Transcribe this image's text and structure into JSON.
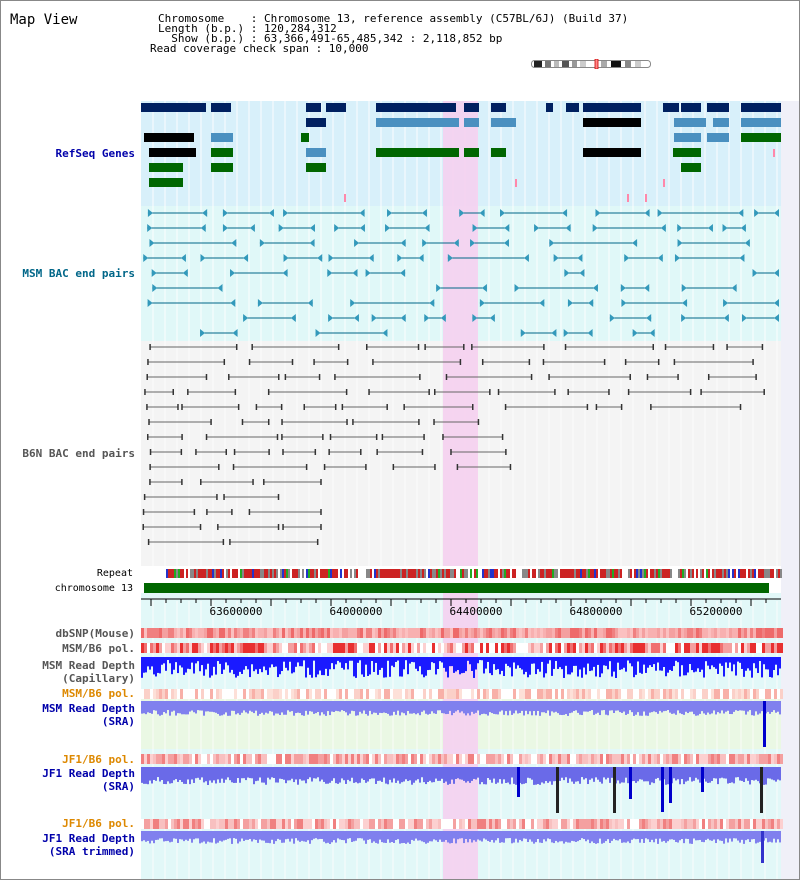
{
  "title": "Map View",
  "header": {
    "line1": "Chromosome    : Chromosome 13, reference assembly (C57BL/6J) (Build 37)",
    "line2": "Length (b.p.) : 120,284,312",
    "line3": "  Show (b.p.) : 63,366,491-65,485,342 : 2,118,852 bp",
    "line4": "Read coverage check span : 10,000"
  },
  "tracks": {
    "refseq": "RefSeq Genes",
    "msm_bac": "MSM BAC end pairs",
    "b6n_bac": "B6N BAC end pairs",
    "repeat": "Repeat",
    "chromosome": "chromosome 13",
    "dbsnp": "dbSNP(Mouse)",
    "msm_b6_pol_a": "MSM/B6 pol.",
    "msm_depth_cap_1": "MSM Read Depth",
    "msm_depth_cap_2": "(Capillary)",
    "msm_b6_pol_b": "MSM/B6 pol.",
    "msm_depth_sra_1": "MSM Read Depth",
    "msm_depth_sra_2": "(SRA)",
    "jf1_b6_pol_a": "JF1/B6 pol.",
    "jf1_depth_sra_1": "JF1 Read Depth",
    "jf1_depth_sra_2": "(SRA)",
    "jf1_b6_pol_b": "JF1/B6 pol.",
    "jf1_depth_trim_1": "JF1 Read Depth",
    "jf1_depth_trim_2": "(SRA trimmed)"
  },
  "ruler": {
    "ticks": [
      "63600000",
      "64000000",
      "64400000",
      "64800000",
      "65200000"
    ]
  },
  "colors": {
    "refseq_label": "#0000aa",
    "msm_label": "#006688",
    "b6n_label": "#555555",
    "orange_label": "#dd8800",
    "depth_label": "#0000aa",
    "refseq_bg": "#d8f0fa",
    "msm_bg": "#e0f8f8",
    "b6n_bg": "#f4f4f4",
    "highlight": "#f5d0f0",
    "chromosome_bar": "#006600"
  }
}
